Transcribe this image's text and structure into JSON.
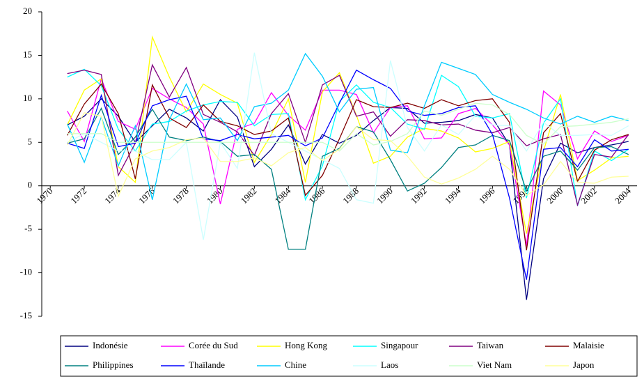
{
  "chart_data": {
    "type": "line",
    "x": [
      1971,
      1972,
      1973,
      1974,
      1975,
      1976,
      1977,
      1978,
      1979,
      1980,
      1981,
      1982,
      1983,
      1984,
      1985,
      1986,
      1987,
      1988,
      1989,
      1990,
      1991,
      1992,
      1993,
      1994,
      1995,
      1996,
      1997,
      1998,
      1999,
      2000,
      2001,
      2002,
      2003,
      2004
    ],
    "xlim": [
      1969.5,
      2004.5
    ],
    "xticks": [
      1970,
      1972,
      1974,
      1976,
      1978,
      1980,
      1982,
      1984,
      1986,
      1988,
      1990,
      1992,
      1994,
      1996,
      1998,
      2000,
      2002,
      2004
    ],
    "ylim": [
      -15,
      20
    ],
    "yticks": [
      -15,
      -10,
      -5,
      0,
      5,
      10,
      15,
      20
    ],
    "grid": false,
    "legend": "bottom",
    "series": [
      {
        "name": "Indonésie",
        "color": "#000080",
        "values": [
          7.0,
          8.0,
          10.0,
          8.0,
          5.0,
          6.9,
          8.8,
          7.8,
          6.3,
          9.9,
          7.9,
          2.2,
          4.2,
          7.0,
          2.5,
          5.9,
          4.9,
          5.8,
          7.5,
          9.0,
          8.9,
          7.2,
          7.3,
          7.5,
          8.2,
          7.8,
          4.7,
          -13.1,
          0.8,
          4.9,
          3.8,
          4.4,
          4.7,
          5.1
        ]
      },
      {
        "name": "Corée du Sud",
        "color": "#ff00ff",
        "values": [
          8.6,
          5.1,
          12.3,
          7.4,
          6.5,
          11.2,
          10.0,
          9.0,
          7.1,
          -2.1,
          6.5,
          7.2,
          10.7,
          8.1,
          6.4,
          11.0,
          11.0,
          10.5,
          6.1,
          9.0,
          9.2,
          5.4,
          5.5,
          8.3,
          8.9,
          7.0,
          4.7,
          -6.9,
          10.9,
          9.3,
          3.1,
          6.3,
          5.1,
          5.8
        ]
      },
      {
        "name": "Hong Kong",
        "color": "#ffff00",
        "values": [
          7.0,
          11.0,
          12.3,
          2.2,
          0.4,
          17.1,
          12.5,
          8.5,
          11.7,
          10.5,
          9.5,
          2.7,
          5.9,
          10.0,
          0.4,
          10.8,
          13.0,
          8.1,
          2.6,
          3.4,
          5.6,
          6.6,
          6.3,
          5.5,
          3.9,
          4.3,
          5.1,
          -5.5,
          4.0,
          10.5,
          0.6,
          1.8,
          3.2,
          3.4
        ]
      },
      {
        "name": "Singapour",
        "color": "#00ffff",
        "values": [
          12.5,
          13.4,
          11.5,
          6.5,
          4.0,
          7.1,
          7.4,
          8.6,
          9.3,
          9.7,
          9.6,
          6.9,
          8.2,
          8.3,
          -1.6,
          2.3,
          9.7,
          11.6,
          9.6,
          9.0,
          7.1,
          6.5,
          12.7,
          11.4,
          8.0,
          7.8,
          8.3,
          -1.4,
          7.2,
          10.0,
          -2.3,
          4.0,
          2.9,
          4.2
        ]
      },
      {
        "name": "Taiwan",
        "color": "#800080",
        "values": [
          12.9,
          13.3,
          12.8,
          1.2,
          4.9,
          13.9,
          10.2,
          13.6,
          8.2,
          7.3,
          6.2,
          3.5,
          8.3,
          10.6,
          5.0,
          11.6,
          12.7,
          8.0,
          8.5,
          5.7,
          7.6,
          7.5,
          7.0,
          7.1,
          6.4,
          6.1,
          6.7,
          4.6,
          5.4,
          5.9,
          -2.2,
          3.6,
          3.3,
          5.9
        ]
      },
      {
        "name": "Malaisie",
        "color": "#800000",
        "values": [
          5.8,
          9.4,
          11.7,
          8.3,
          0.8,
          11.6,
          7.8,
          6.7,
          9.3,
          7.4,
          6.9,
          5.9,
          6.3,
          7.8,
          -1.1,
          1.2,
          5.4,
          9.9,
          9.1,
          9.0,
          9.5,
          8.9,
          9.9,
          9.2,
          9.8,
          10.0,
          7.3,
          -7.4,
          6.1,
          8.3,
          0.5,
          4.1,
          5.3,
          5.9
        ]
      },
      {
        "name": "Philippines",
        "color": "#008080",
        "values": [
          4.9,
          5.4,
          8.9,
          3.6,
          5.6,
          8.8,
          5.6,
          5.2,
          5.6,
          5.1,
          3.4,
          3.6,
          1.9,
          -7.3,
          -7.3,
          3.4,
          4.3,
          6.8,
          6.2,
          3.0,
          -0.6,
          0.3,
          2.1,
          4.4,
          4.7,
          5.8,
          5.2,
          -0.6,
          3.4,
          4.0,
          1.8,
          4.4,
          4.5,
          3.6
        ]
      },
      {
        "name": "Thaïlande",
        "color": "#0000ff",
        "values": [
          4.9,
          4.3,
          10.4,
          4.5,
          4.9,
          9.2,
          9.9,
          10.3,
          5.4,
          5.2,
          5.9,
          5.4,
          5.6,
          5.8,
          4.6,
          5.5,
          9.5,
          13.3,
          12.2,
          11.2,
          8.6,
          8.1,
          8.3,
          9.0,
          9.2,
          5.9,
          -1.4,
          -10.8,
          4.2,
          4.4,
          2.2,
          5.3,
          4.0,
          4.2
        ]
      },
      {
        "name": "Chine",
        "color": "#00ccff",
        "values": [
          7.1,
          2.7,
          7.9,
          2.3,
          6.9,
          -1.6,
          7.6,
          11.7,
          7.6,
          7.8,
          5.2,
          9.1,
          9.5,
          11.0,
          15.2,
          12.6,
          8.5,
          11.1,
          11.3,
          4.1,
          3.8,
          9.2,
          14.2,
          13.5,
          12.8,
          10.5,
          9.6,
          8.8,
          7.8,
          7.1,
          8.0,
          7.3,
          8.0,
          7.5
        ]
      },
      {
        "name": "Laos",
        "color": "#ccffff",
        "values": [
          5,
          6,
          5,
          4,
          4,
          3,
          3,
          5,
          -6.2,
          5,
          2,
          15.3,
          6,
          5,
          4,
          3,
          2,
          -1.6,
          -2,
          14.4,
          6.7,
          4,
          7,
          5.9,
          8.1,
          7,
          6.9,
          4,
          7.3,
          5.8,
          5.8,
          5.9,
          5.8,
          6.9
        ]
      },
      {
        "name": "Viet Nam",
        "color": "#ccffcc",
        "values": [
          6,
          6,
          6,
          5,
          5,
          5,
          5,
          5,
          5,
          5,
          5,
          5,
          5,
          5,
          5,
          5,
          4,
          6,
          4.7,
          5.1,
          6,
          8.6,
          8.1,
          8.8,
          9.5,
          9.3,
          8.2,
          5.8,
          4.8,
          6.8,
          6.9,
          7.1,
          7.3,
          7.7
        ]
      },
      {
        "name": "Japon",
        "color": "#ffff99",
        "values": [
          4.7,
          8.4,
          8.0,
          -1.2,
          3.1,
          4.0,
          4.4,
          5.3,
          5.5,
          2.8,
          2.8,
          3.2,
          2.3,
          3.8,
          4.4,
          2.9,
          4.2,
          6.8,
          5.3,
          5.2,
          3.4,
          1.0,
          0.2,
          0.9,
          1.9,
          3.4,
          1.9,
          -1.1,
          0.1,
          2.8,
          0.4,
          0.3,
          1.0,
          1.1
        ]
      }
    ]
  }
}
